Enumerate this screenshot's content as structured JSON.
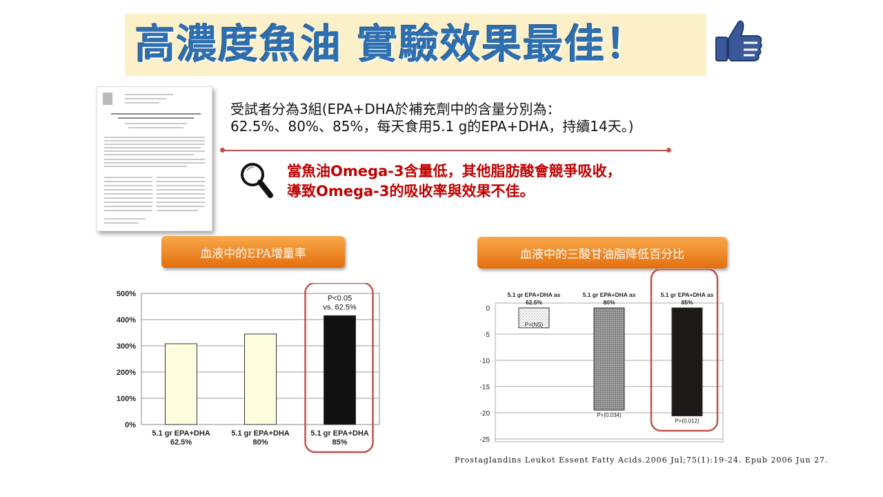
{
  "title": "高濃度魚油 實驗效果最佳！",
  "description": {
    "line1": "受試者分為3組(EPA+DHA於補充劑中的含量分別為：",
    "line2": "62.5%、80%、85%，每天食用5.1 g的EPA+DHA，持續14天。)"
  },
  "note": {
    "line1": "當魚油Omega-3含量低，其他脂肪酸會競爭吸收，",
    "line2": "導致Omega-3的吸收率與效果不佳。"
  },
  "icons": {
    "title": "thumbs-up-icon",
    "note": "magnifier-icon"
  },
  "colors": {
    "title": "#2e6fb0",
    "note": "#c00000",
    "highlight": "#c0504d",
    "pill": "#e46f0e"
  },
  "citation": "Prostaglandins Leukot Essent Fatty Acids.2006 Jul;75(1):19-24. Epub 2006 Jun 27.",
  "chart_data": [
    {
      "type": "bar",
      "title": "血液中的EPA增量率",
      "categories": [
        "5.1 gr EPA+DHA 62.5%",
        "5.1 gr EPA+DHA 80%",
        "5.1 gr EPA+DHA 85%"
      ],
      "category_lines": [
        [
          "5.1 gr EPA+DHA",
          "62.5%"
        ],
        [
          "5.1 gr EPA+DHA",
          "80%"
        ],
        [
          "5.1 gr EPA+DHA",
          "85%"
        ]
      ],
      "values": [
        308,
        345,
        415
      ],
      "ylim": [
        0,
        500
      ],
      "yticks": [
        "0%",
        "100%",
        "200%",
        "300%",
        "400%",
        "500%"
      ],
      "annotation": [
        "P<0.05",
        "vs. 62.5%"
      ],
      "highlighted_index": 2,
      "grid": true
    },
    {
      "type": "bar",
      "title": "血液中的三酸甘油脂降低百分比",
      "categories": [
        "5.1 gr EPA+DHA as 62.5%",
        "5.1 gr EPA+DHA as 80%",
        "5.1 gr EPA+DHA as 85%"
      ],
      "category_lines": [
        [
          "5.1 gr EPA+DHA as",
          "62.5%"
        ],
        [
          "5.1 gr EPA+DHA as",
          "80%"
        ],
        [
          "5.1 gr EPA+DHA as",
          "85%"
        ]
      ],
      "values": [
        -3.8,
        -19.5,
        -20.6
      ],
      "ylim": [
        -25,
        0
      ],
      "yticks": [
        "0",
        "-5",
        "-10",
        "-15",
        "-20",
        "-25"
      ],
      "p_values": [
        "P=(NS)",
        "P=(0.034)",
        "P=(0.012)"
      ],
      "highlighted_index": 2,
      "grid": true
    }
  ]
}
